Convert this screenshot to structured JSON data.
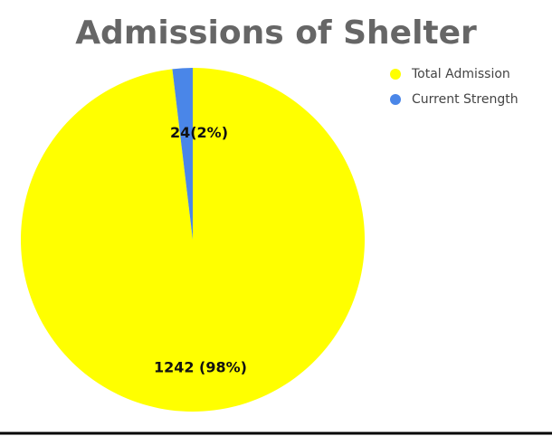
{
  "chart_data": {
    "type": "pie",
    "title": "Admissions of Shelter",
    "categories": [
      "Total Admission",
      "Current Strength"
    ],
    "values": [
      1242,
      24
    ],
    "value_labels": [
      "1242 (98%)",
      "24(2%)"
    ],
    "colors": [
      "#ffff00",
      "#4a86e8"
    ],
    "legend": "top-right"
  }
}
